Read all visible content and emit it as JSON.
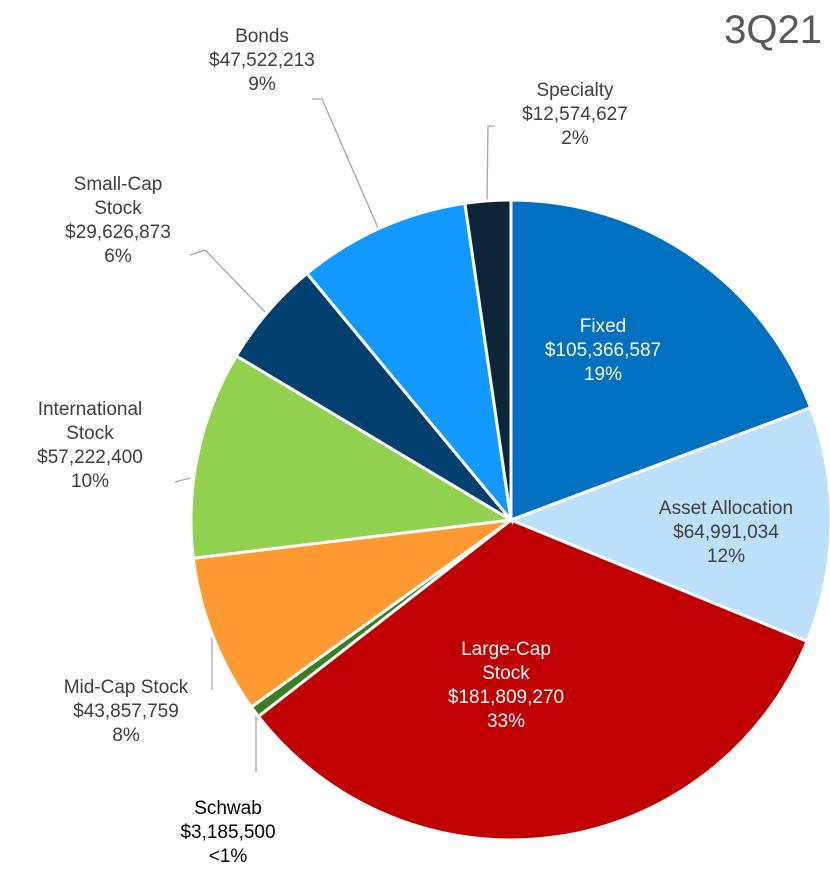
{
  "chart_data": {
    "type": "pie",
    "title": "3Q21",
    "categories": [
      "Fixed",
      "Asset Allocation",
      "Large-Cap Stock",
      "Schwab",
      "Mid-Cap Stock",
      "International Stock",
      "Small-Cap Stock",
      "Bonds",
      "Specialty"
    ],
    "values": [
      105366587,
      64991034,
      181809270,
      3185500,
      43857759,
      57222400,
      29626873,
      47522213,
      12574627
    ],
    "value_labels": [
      "$105,366,587",
      "$64,991,034",
      "$181,809,270",
      "$3,185,500",
      "$43,857,759",
      "$57,222,400",
      "$29,626,873",
      "$47,522,213",
      "$12,574,627"
    ],
    "percent_labels": [
      "19%",
      "12%",
      "33%",
      "<1%",
      "8%",
      "10%",
      "6%",
      "9%",
      "2%"
    ],
    "colors": [
      "#0070c0",
      "#bde0fb",
      "#c00000",
      "#3a7d22",
      "#ff9a33",
      "#92d050",
      "#003f6e",
      "#1199ff",
      "#0d2538"
    ]
  }
}
